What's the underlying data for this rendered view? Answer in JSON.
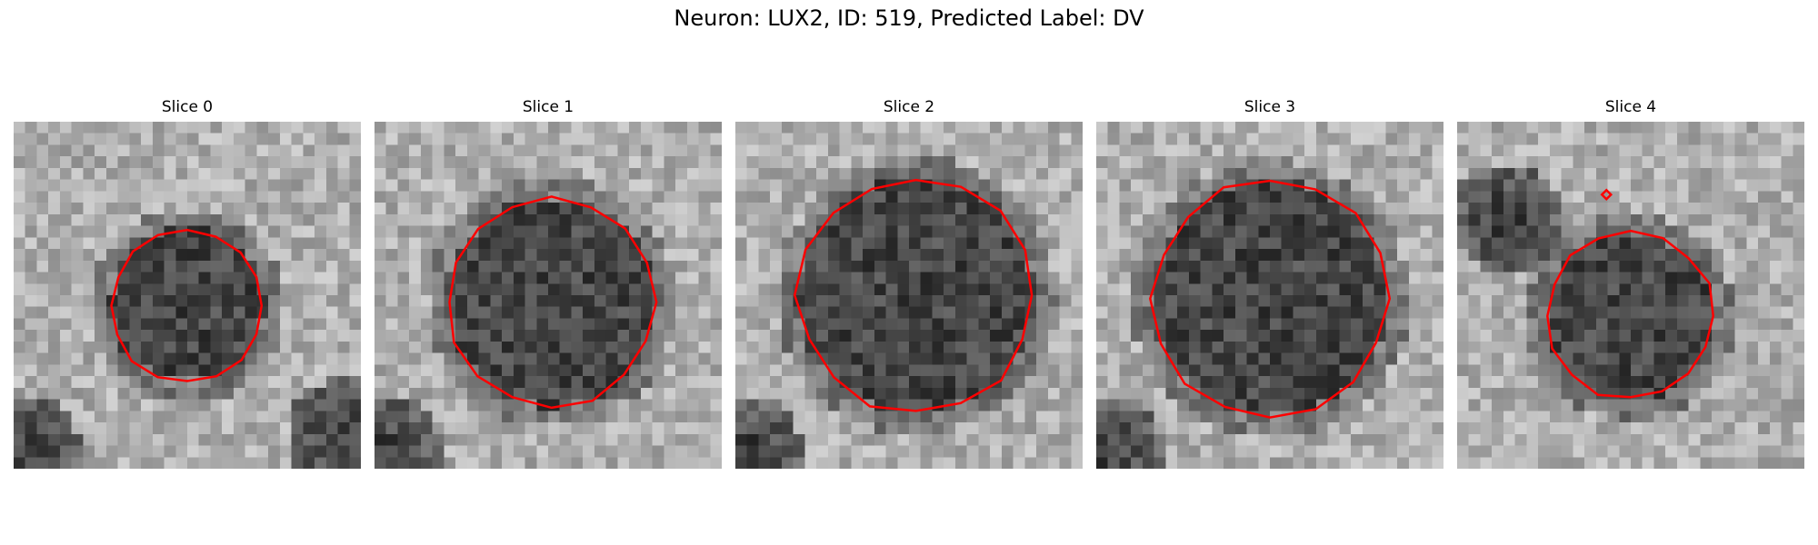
{
  "figure": {
    "title": "Neuron: LUX2, ID: 519, Predicted Label: DV"
  },
  "panels": [
    {
      "title": "Slice 0",
      "contour_radius": 0.22,
      "roi_dot": false,
      "dark_blobs": [
        "bottom-left",
        "bottom-right"
      ]
    },
    {
      "title": "Slice 1",
      "contour_radius": 0.3,
      "roi_dot": false,
      "dark_blobs": [
        "bottom-left"
      ]
    },
    {
      "title": "Slice 2",
      "contour_radius": 0.34,
      "roi_dot": false,
      "dark_blobs": [
        "bottom-left"
      ]
    },
    {
      "title": "Slice 3",
      "contour_radius": 0.34,
      "roi_dot": false,
      "dark_blobs": [
        "bottom-left"
      ]
    },
    {
      "title": "Slice 4",
      "contour_radius": 0.24,
      "roi_dot": true,
      "dark_blobs": [
        "top-left"
      ]
    }
  ],
  "colors": {
    "contour": "#ff0000"
  }
}
